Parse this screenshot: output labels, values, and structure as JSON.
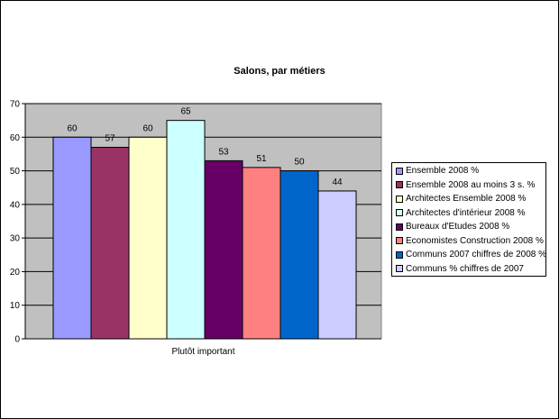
{
  "chart_data": {
    "type": "bar",
    "title": "Salons, par métiers",
    "categories": [
      "Plutôt important"
    ],
    "xlabel": "",
    "ylabel": "",
    "ylim": [
      0,
      70
    ],
    "yticks": [
      "0",
      "10",
      "20",
      "30",
      "40",
      "50",
      "60",
      "70"
    ],
    "grid": true,
    "legend_position": "right",
    "plot_background": "#c0c0c0",
    "series": [
      {
        "name": "Ensemble 2008 %",
        "values": [
          60
        ],
        "color": "#9999ff"
      },
      {
        "name": "Ensemble 2008 au moins 3 s. %",
        "values": [
          57
        ],
        "color": "#993366"
      },
      {
        "name": "Architectes Ensemble 2008 %",
        "values": [
          60
        ],
        "color": "#ffffcc"
      },
      {
        "name": "Architectes d'intérieur 2008 %",
        "values": [
          65
        ],
        "color": "#ccffff"
      },
      {
        "name": "Bureaux d'Etudes 2008 %",
        "values": [
          53
        ],
        "color": "#660066"
      },
      {
        "name": "Economistes  Construction 2008 %",
        "values": [
          51
        ],
        "color": "#ff8080"
      },
      {
        "name": "Communs 2007 chiffres de 2008 %",
        "values": [
          50
        ],
        "color": "#0066cc"
      },
      {
        "name": "Communs % chiffres de 2007",
        "values": [
          44
        ],
        "color": "#ccccff"
      }
    ],
    "data_labels": [
      "60",
      "57",
      "60",
      "65",
      "53",
      "51",
      "50",
      "44"
    ]
  }
}
